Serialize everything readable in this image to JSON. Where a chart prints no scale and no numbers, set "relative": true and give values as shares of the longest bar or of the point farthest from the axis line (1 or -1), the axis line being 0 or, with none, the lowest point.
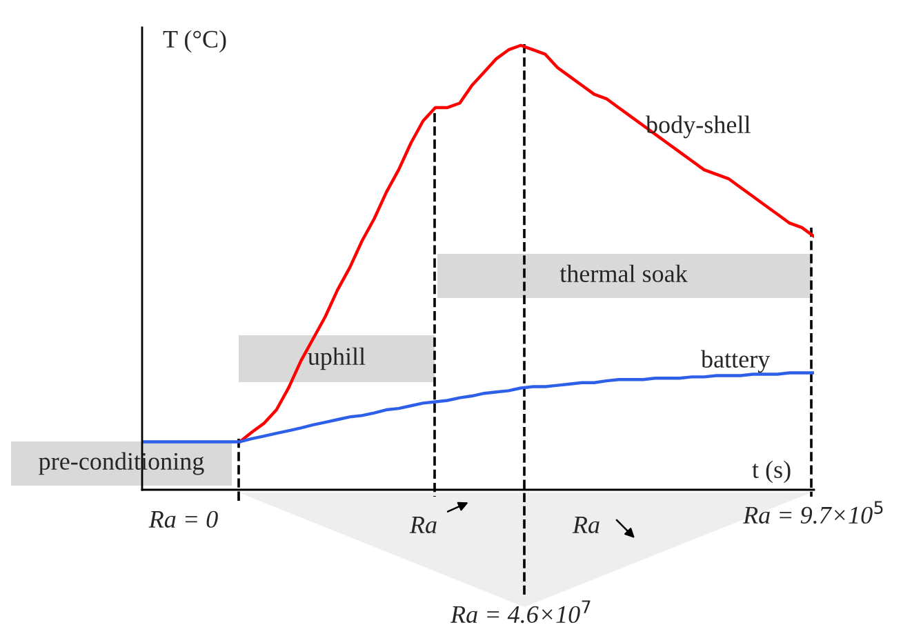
{
  "chart_data": {
    "type": "line",
    "relative": true,
    "grid": false,
    "legend": false,
    "line_style": "solid",
    "xlabel": "t (s)",
    "ylabel": "T (°C)",
    "categories": [
      null,
      null,
      null,
      null,
      null,
      null,
      null,
      null,
      null,
      null,
      null,
      null,
      null,
      null,
      null,
      null,
      null,
      null,
      null,
      null,
      null,
      null,
      null,
      null,
      null,
      null,
      null,
      null,
      null,
      null,
      null,
      null,
      null,
      null,
      null,
      null,
      null,
      null,
      null,
      null,
      null,
      null,
      null,
      null,
      null,
      null,
      null,
      null,
      null,
      null,
      null,
      null,
      null,
      null,
      null,
      null
    ],
    "series": [
      {
        "name": "body-shell",
        "color": "#ff0000",
        "values": [
          null,
          null,
          null,
          null,
          null,
          null,
          null,
          null,
          0.108,
          0.13,
          0.15,
          0.18,
          0.23,
          0.29,
          0.34,
          0.39,
          0.45,
          0.5,
          0.56,
          0.61,
          0.67,
          0.72,
          0.78,
          0.83,
          0.86,
          0.86,
          0.87,
          0.91,
          0.94,
          0.97,
          0.99,
          1.0,
          0.99,
          0.98,
          0.95,
          0.93,
          0.91,
          0.89,
          0.88,
          0.86,
          0.84,
          0.82,
          0.8,
          0.78,
          0.76,
          0.74,
          0.72,
          0.71,
          0.7,
          0.68,
          0.66,
          0.64,
          0.62,
          0.6,
          0.59,
          0.57
        ]
      },
      {
        "name": "battery",
        "color": "#2e5fe8",
        "values": [
          0.108,
          0.108,
          0.108,
          0.108,
          0.108,
          0.108,
          0.108,
          0.108,
          0.108,
          0.115,
          0.121,
          0.127,
          0.133,
          0.139,
          0.146,
          0.152,
          0.158,
          0.164,
          0.167,
          0.173,
          0.18,
          0.183,
          0.189,
          0.195,
          0.198,
          0.201,
          0.207,
          0.211,
          0.217,
          0.22,
          0.223,
          0.229,
          0.232,
          0.232,
          0.235,
          0.238,
          0.241,
          0.241,
          0.245,
          0.248,
          0.248,
          0.248,
          0.251,
          0.251,
          0.251,
          0.254,
          0.254,
          0.257,
          0.257,
          0.257,
          0.26,
          0.26,
          0.26,
          0.263,
          0.263,
          0.263
        ]
      }
    ],
    "annotations": [
      "pre-conditioning",
      "uphill",
      "thermal soak",
      "Ra = 0",
      "Ra",
      "Ra",
      "Ra = 9.7×10$^{5}$",
      "Ra = 4.6×10$^{7}$"
    ]
  }
}
